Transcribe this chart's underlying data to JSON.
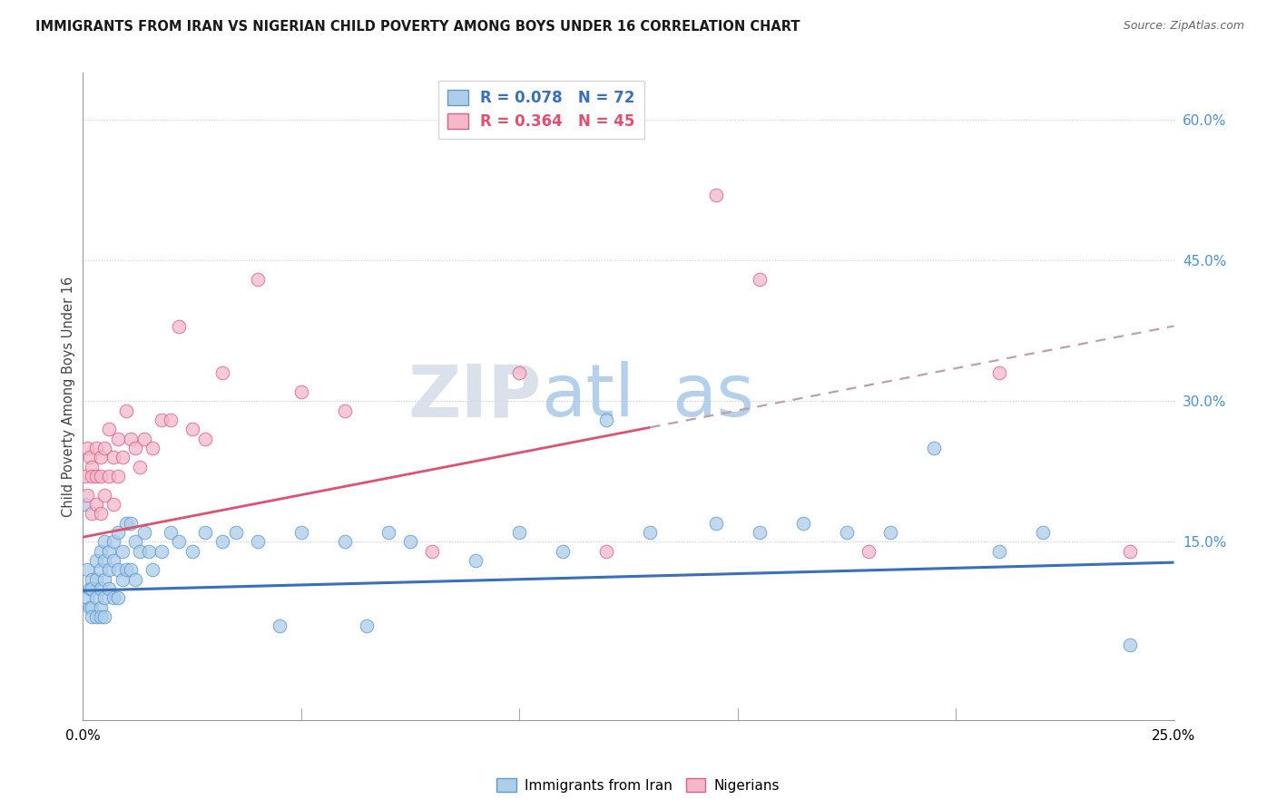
{
  "title": "IMMIGRANTS FROM IRAN VS NIGERIAN CHILD POVERTY AMONG BOYS UNDER 16 CORRELATION CHART",
  "source": "Source: ZipAtlas.com",
  "ylabel": "Child Poverty Among Boys Under 16",
  "series1_color": "#aecde8",
  "series2_color": "#f4b8cb",
  "series1_edge_color": "#5b9bd5",
  "series2_edge_color": "#e06080",
  "line1_color": "#3a6fba",
  "line2_color": "#e05070",
  "line1_dash_color": "#8ab0d8",
  "watermark_zip": "ZIP",
  "watermark_atlas": "atlas",
  "xmin": 0.0,
  "xmax": 0.25,
  "ymin": -0.04,
  "ymax": 0.65,
  "scatter1_x": [
    0.0005,
    0.001,
    0.001,
    0.0015,
    0.0015,
    0.002,
    0.002,
    0.002,
    0.002,
    0.003,
    0.003,
    0.003,
    0.003,
    0.004,
    0.004,
    0.004,
    0.004,
    0.004,
    0.005,
    0.005,
    0.005,
    0.005,
    0.005,
    0.006,
    0.006,
    0.006,
    0.007,
    0.007,
    0.007,
    0.008,
    0.008,
    0.008,
    0.009,
    0.009,
    0.01,
    0.01,
    0.011,
    0.011,
    0.012,
    0.012,
    0.013,
    0.014,
    0.015,
    0.016,
    0.018,
    0.02,
    0.022,
    0.025,
    0.028,
    0.032,
    0.035,
    0.04,
    0.045,
    0.05,
    0.06,
    0.065,
    0.07,
    0.075,
    0.09,
    0.1,
    0.11,
    0.12,
    0.13,
    0.145,
    0.155,
    0.165,
    0.175,
    0.185,
    0.195,
    0.21,
    0.22,
    0.24
  ],
  "scatter1_y": [
    0.19,
    0.12,
    0.09,
    0.1,
    0.08,
    0.11,
    0.1,
    0.08,
    0.07,
    0.13,
    0.11,
    0.09,
    0.07,
    0.14,
    0.12,
    0.1,
    0.08,
    0.07,
    0.15,
    0.13,
    0.11,
    0.09,
    0.07,
    0.14,
    0.12,
    0.1,
    0.15,
    0.13,
    0.09,
    0.16,
    0.12,
    0.09,
    0.14,
    0.11,
    0.17,
    0.12,
    0.17,
    0.12,
    0.15,
    0.11,
    0.14,
    0.16,
    0.14,
    0.12,
    0.14,
    0.16,
    0.15,
    0.14,
    0.16,
    0.15,
    0.16,
    0.15,
    0.06,
    0.16,
    0.15,
    0.06,
    0.16,
    0.15,
    0.13,
    0.16,
    0.14,
    0.28,
    0.16,
    0.17,
    0.16,
    0.17,
    0.16,
    0.16,
    0.25,
    0.14,
    0.16,
    0.04
  ],
  "scatter2_x": [
    0.0005,
    0.001,
    0.001,
    0.0015,
    0.002,
    0.002,
    0.002,
    0.003,
    0.003,
    0.003,
    0.004,
    0.004,
    0.004,
    0.005,
    0.005,
    0.006,
    0.006,
    0.007,
    0.007,
    0.008,
    0.008,
    0.009,
    0.01,
    0.011,
    0.012,
    0.013,
    0.014,
    0.016,
    0.018,
    0.02,
    0.022,
    0.025,
    0.028,
    0.032,
    0.04,
    0.05,
    0.06,
    0.08,
    0.1,
    0.12,
    0.145,
    0.155,
    0.18,
    0.21,
    0.24
  ],
  "scatter2_y": [
    0.22,
    0.25,
    0.2,
    0.24,
    0.23,
    0.22,
    0.18,
    0.25,
    0.22,
    0.19,
    0.24,
    0.22,
    0.18,
    0.25,
    0.2,
    0.27,
    0.22,
    0.24,
    0.19,
    0.26,
    0.22,
    0.24,
    0.29,
    0.26,
    0.25,
    0.23,
    0.26,
    0.25,
    0.28,
    0.28,
    0.38,
    0.27,
    0.26,
    0.33,
    0.43,
    0.31,
    0.29,
    0.14,
    0.33,
    0.14,
    0.52,
    0.43,
    0.14,
    0.33,
    0.14
  ],
  "trend1_x0": 0.0,
  "trend1_x1": 0.25,
  "trend1_y0": 0.098,
  "trend1_y1": 0.128,
  "trend2_x0": 0.0,
  "trend2_x1": 0.25,
  "trend2_y0": 0.155,
  "trend2_y1": 0.38,
  "trend2_solid_end": 0.13,
  "trend2_dash_start": 0.13
}
